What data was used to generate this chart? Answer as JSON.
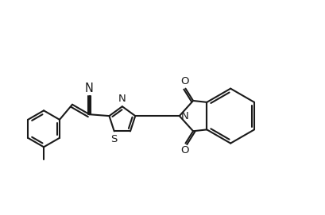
{
  "background_color": "#ffffff",
  "line_color": "#1a1a1a",
  "line_width": 1.5,
  "font_size": 9.5,
  "figsize": [
    4.09,
    2.71
  ],
  "dpi": 100,
  "xlim": [
    0.0,
    10.5
  ],
  "ylim": [
    0.2,
    7.2
  ]
}
